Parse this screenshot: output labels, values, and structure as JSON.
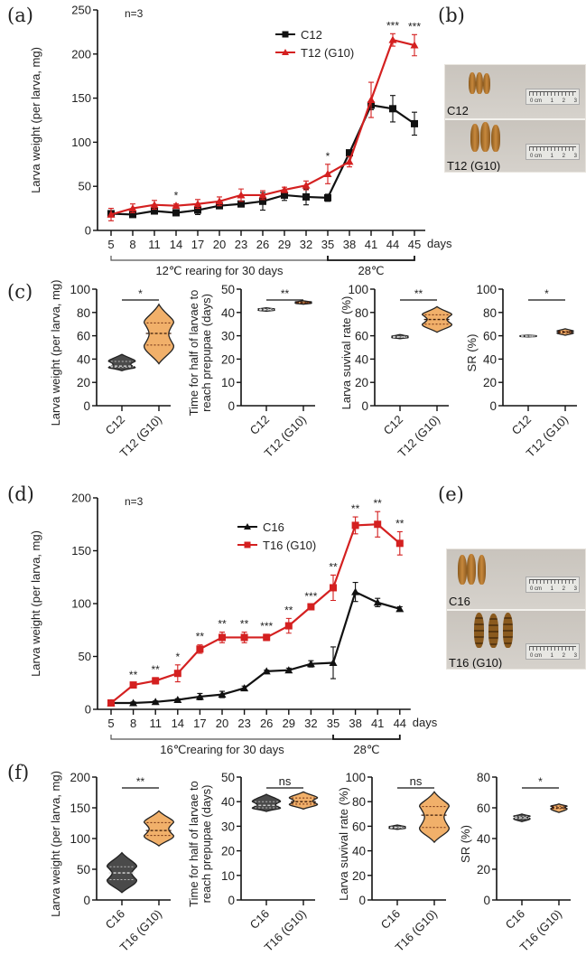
{
  "figure": {
    "panel_labels": [
      "(a)",
      "(b)",
      "(c)",
      "(d)",
      "(e)",
      "(f)"
    ]
  },
  "chart_data": [
    {
      "id": "a",
      "type": "line",
      "annotation": "n=3",
      "xlabel": "days",
      "ylabel": "Larva weight (per larva, mg)",
      "ylim": [
        0,
        250
      ],
      "yticks": [
        0,
        50,
        100,
        150,
        200,
        250
      ],
      "x": [
        5,
        8,
        11,
        14,
        17,
        20,
        23,
        26,
        29,
        32,
        35,
        38,
        41,
        44,
        45
      ],
      "series": [
        {
          "name": "C12",
          "color": "#111111",
          "marker": "square",
          "values": [
            19,
            18,
            22,
            20,
            23,
            28,
            30,
            33,
            40,
            38,
            37,
            88,
            142,
            138,
            121
          ],
          "errors": [
            3,
            2,
            2,
            2,
            5,
            3,
            3,
            10,
            6,
            9,
            4,
            3,
            5,
            15,
            13
          ]
        },
        {
          "name": "T12 (G10)",
          "color": "#d42020",
          "marker": "triangle",
          "values": [
            18,
            25,
            29,
            28,
            30,
            33,
            40,
            40,
            46,
            51,
            64,
            78,
            148,
            216,
            210
          ],
          "errors": [
            7,
            5,
            5,
            2,
            5,
            5,
            7,
            5,
            3,
            5,
            11,
            6,
            20,
            7,
            12
          ]
        }
      ],
      "significance": [
        {
          "x": 14,
          "label": "*"
        },
        {
          "x": 35,
          "label": "*"
        },
        {
          "x": 44,
          "label": "***"
        },
        {
          "x": 45,
          "label": "***"
        }
      ],
      "brackets": [
        {
          "from": 5,
          "to": 35,
          "label": "12℃  rearing for 30 days"
        },
        {
          "from": 35,
          "to": 45,
          "label": "28℃"
        }
      ],
      "legend": "top-right"
    },
    {
      "id": "c",
      "type": "violin",
      "groups": [
        {
          "ylabel": "Larva weight (per larva, mg)",
          "ylim": [
            0,
            100
          ],
          "yticks": [
            0,
            20,
            40,
            60,
            80,
            100
          ],
          "categories": [
            "C12",
            "T12 (G10)"
          ],
          "sig": "*",
          "violins": [
            {
              "min": 30,
              "max": 44,
              "median": 34,
              "q1": 33,
              "q3": 38,
              "color": "#4a4a4a"
            },
            {
              "min": 36,
              "max": 87,
              "median": 62,
              "q1": 52,
              "q3": 71,
              "color": "#f1b06a"
            }
          ]
        },
        {
          "ylabel": "Time for half of larvae to reach  prepupae  (days)",
          "ylim": [
            0,
            50
          ],
          "yticks": [
            0,
            10,
            20,
            30,
            40,
            50
          ],
          "categories": [
            "C12",
            "T12 (G10)"
          ],
          "sig": "**",
          "violins": [
            {
              "min": 40.5,
              "max": 42,
              "median": 41.2,
              "q1": 41,
              "q3": 41.5,
              "color": "#4a4a4a"
            },
            {
              "min": 43.5,
              "max": 45,
              "median": 44.2,
              "q1": 44,
              "q3": 44.5,
              "color": "#f1b06a"
            }
          ]
        },
        {
          "ylabel": "Larva suvival rate (%)",
          "ylim": [
            0,
            100
          ],
          "yticks": [
            0,
            20,
            40,
            60,
            80,
            100
          ],
          "categories": [
            "C12",
            "T12 (G10)"
          ],
          "sig": "**",
          "violins": [
            {
              "min": 57.5,
              "max": 61,
              "median": 59,
              "q1": 58.5,
              "q3": 59.5,
              "color": "#4a4a4a"
            },
            {
              "min": 63,
              "max": 85,
              "median": 74,
              "q1": 70,
              "q3": 78,
              "color": "#f1b06a"
            }
          ]
        },
        {
          "ylabel": "SR (%)",
          "ylim": [
            0,
            100
          ],
          "yticks": [
            0,
            20,
            40,
            60,
            80,
            100
          ],
          "categories": [
            "C12",
            "T12 (G10)"
          ],
          "sig": "*",
          "violins": [
            {
              "min": 59,
              "max": 60.5,
              "median": 59.7,
              "q1": 59.5,
              "q3": 60,
              "color": "#4a4a4a"
            },
            {
              "min": 60.5,
              "max": 66,
              "median": 63.2,
              "q1": 62.5,
              "q3": 64,
              "color": "#f1b06a"
            }
          ]
        }
      ]
    },
    {
      "id": "d",
      "type": "line",
      "annotation": "n=3",
      "xlabel": "days",
      "ylabel": "Larva weight (per larva, mg)",
      "ylim": [
        0,
        200
      ],
      "yticks": [
        0,
        50,
        100,
        150,
        200
      ],
      "x": [
        5,
        8,
        11,
        14,
        17,
        20,
        23,
        26,
        29,
        32,
        35,
        38,
        41,
        44
      ],
      "series": [
        {
          "name": "C16",
          "color": "#111111",
          "marker": "triangle",
          "values": [
            6,
            6,
            7,
            9,
            12,
            14,
            20,
            36,
            37,
            43,
            44,
            111,
            101,
            95
          ],
          "errors": [
            1,
            1,
            1,
            1,
            3,
            3,
            2,
            1,
            2,
            3,
            15,
            9,
            4,
            2
          ]
        },
        {
          "name": "T16 (G10)",
          "color": "#d42020",
          "marker": "square",
          "values": [
            6,
            23,
            27,
            34,
            57,
            68,
            68,
            68,
            79,
            97,
            115,
            174,
            175,
            157
          ],
          "errors": [
            1,
            2,
            3,
            8,
            4,
            5,
            5,
            3,
            7,
            2,
            12,
            8,
            12,
            11
          ]
        }
      ],
      "significance": [
        {
          "x": 8,
          "label": "**"
        },
        {
          "x": 11,
          "label": "**"
        },
        {
          "x": 14,
          "label": "*"
        },
        {
          "x": 17,
          "label": "**"
        },
        {
          "x": 20,
          "label": "**"
        },
        {
          "x": 23,
          "label": "**"
        },
        {
          "x": 26,
          "label": "***"
        },
        {
          "x": 29,
          "label": "**"
        },
        {
          "x": 32,
          "label": "***"
        },
        {
          "x": 35,
          "label": "**"
        },
        {
          "x": 38,
          "label": "**"
        },
        {
          "x": 41,
          "label": "**"
        },
        {
          "x": 44,
          "label": "**"
        }
      ],
      "brackets": [
        {
          "from": 5,
          "to": 35,
          "label": "16℃rearing for 30 days"
        },
        {
          "from": 35,
          "to": 44,
          "label": "28℃"
        }
      ],
      "legend": "top-right"
    },
    {
      "id": "f",
      "type": "violin",
      "groups": [
        {
          "ylabel": "Larva weight (per larva, mg)",
          "ylim": [
            0,
            200
          ],
          "yticks": [
            0,
            50,
            100,
            150,
            200
          ],
          "categories": [
            "C16",
            "T16 (G10)"
          ],
          "sig": "**",
          "violins": [
            {
              "min": 12,
              "max": 77,
              "median": 44,
              "q1": 33,
              "q3": 54,
              "color": "#4a4a4a"
            },
            {
              "min": 88,
              "max": 145,
              "median": 113,
              "q1": 105,
              "q3": 126,
              "color": "#f1b06a"
            }
          ]
        },
        {
          "ylabel": "Time for half of larvae to reach  prepupae  (days)",
          "ylim": [
            0,
            50
          ],
          "yticks": [
            0,
            10,
            20,
            30,
            40,
            50
          ],
          "categories": [
            "C16",
            "T16 (G10)"
          ],
          "sig": "ns",
          "violins": [
            {
              "min": 36,
              "max": 43,
              "median": 38.5,
              "q1": 37.5,
              "q3": 40,
              "color": "#4a4a4a"
            },
            {
              "min": 37,
              "max": 44,
              "median": 40,
              "q1": 39,
              "q3": 41.5,
              "color": "#f1b06a"
            }
          ]
        },
        {
          "ylabel": "Larva suvival rate (%)",
          "ylim": [
            0,
            100
          ],
          "yticks": [
            0,
            20,
            40,
            60,
            80,
            100
          ],
          "categories": [
            "C16",
            "T16 (G10)"
          ],
          "sig": "ns",
          "violins": [
            {
              "min": 57.5,
              "max": 61,
              "median": 59,
              "q1": 58.5,
              "q3": 59.5,
              "color": "#4a4a4a"
            },
            {
              "min": 47,
              "max": 88,
              "median": 69,
              "q1": 59,
              "q3": 76,
              "color": "#f1b06a"
            }
          ]
        },
        {
          "ylabel": "SR (%)",
          "ylim": [
            0,
            80
          ],
          "yticks": [
            0,
            20,
            40,
            60,
            80
          ],
          "categories": [
            "C16",
            "T16 (G10)"
          ],
          "sig": "*",
          "violins": [
            {
              "min": 51,
              "max": 56,
              "median": 53.5,
              "q1": 53,
              "q3": 54.5,
              "color": "#4a4a4a"
            },
            {
              "min": 57,
              "max": 62.5,
              "median": 60,
              "q1": 59.5,
              "q3": 61,
              "color": "#f1b06a"
            }
          ]
        }
      ]
    }
  ],
  "photos": [
    {
      "id": "b",
      "top_caption": "C12",
      "bottom_caption": "T12 (G10)",
      "ruler_numbers": [
        "0 cm",
        "1",
        "2",
        "3"
      ]
    },
    {
      "id": "e",
      "top_caption": "C16",
      "bottom_caption": "T16 (G10)",
      "ruler_numbers": [
        "0 cm",
        "1",
        "2",
        "3"
      ]
    }
  ]
}
